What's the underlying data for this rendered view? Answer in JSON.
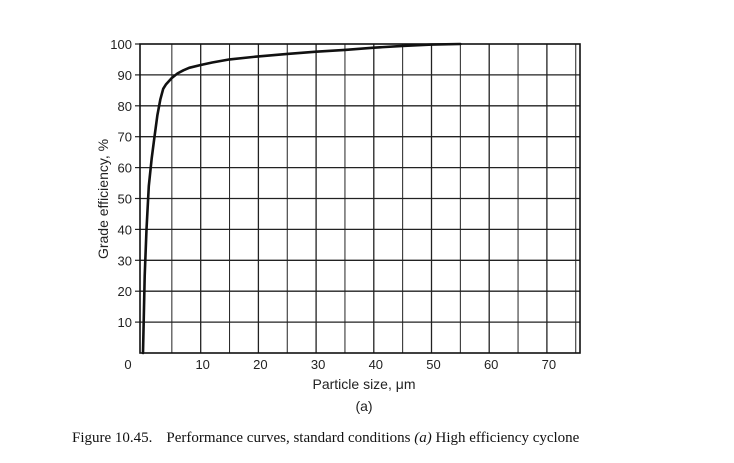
{
  "chart_data": {
    "type": "line",
    "xlabel": "Particle size, μm",
    "ylabel": "Grade efficiency, %",
    "subfigure_label": "(a)",
    "xlim": [
      0,
      78
    ],
    "ylim": [
      0,
      100
    ],
    "x_ticks": [
      0,
      10,
      20,
      30,
      40,
      50,
      60,
      70
    ],
    "x_tick_labels": [
      "10",
      "20",
      "30",
      "40",
      "50",
      "60",
      "70"
    ],
    "y_ticks": [
      10,
      20,
      30,
      40,
      50,
      60,
      70,
      80,
      90,
      100
    ],
    "origin_label": "0",
    "grid": true,
    "series": [
      {
        "x": [
          0,
          0.3,
          0.6,
          1,
          1.5,
          2,
          2.5,
          3,
          3.5,
          4,
          5,
          6,
          7,
          8,
          10,
          12,
          15,
          20,
          25,
          30,
          35,
          40,
          45,
          50,
          55
        ],
        "y": [
          0,
          25,
          40,
          54,
          63,
          70,
          77,
          82,
          85.5,
          87,
          89,
          90.5,
          91.5,
          92.3,
          93.2,
          94,
          95,
          96,
          96.8,
          97.5,
          98.1,
          98.8,
          99.4,
          99.8,
          100
        ]
      }
    ]
  },
  "caption": {
    "label": "Figure 10.45.",
    "text_before": "Performance curves, standard conditions",
    "italic": "(a)",
    "text_after": "High efficiency cyclone"
  }
}
